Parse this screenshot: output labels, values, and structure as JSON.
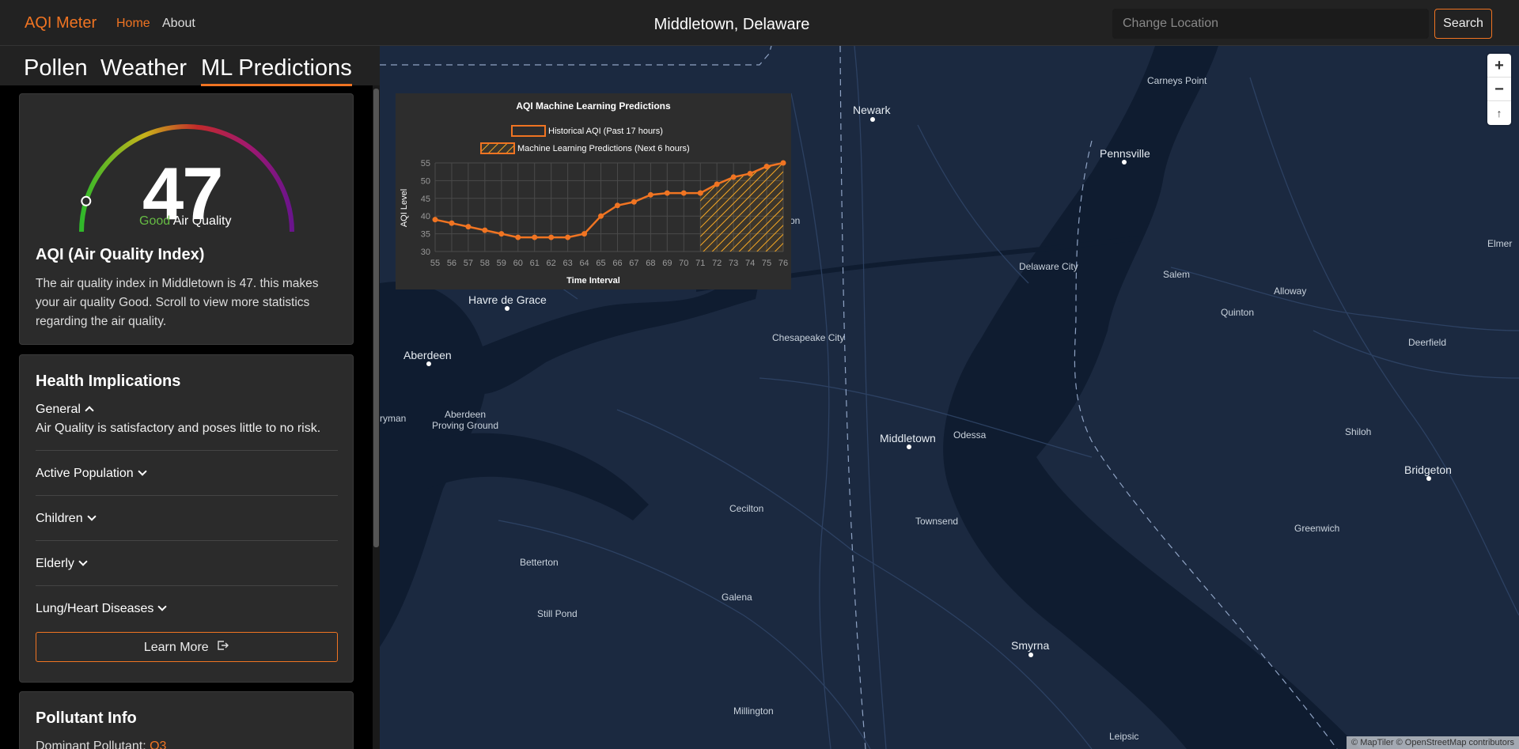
{
  "nav": {
    "brand": "AQI Meter",
    "home": "Home",
    "about": "About",
    "location": "Middletown, Delaware",
    "search_placeholder": "Change Location",
    "search_button": "Search"
  },
  "tabs": [
    {
      "label": "Pollen"
    },
    {
      "label": "Weather"
    },
    {
      "label": "ML Predictions",
      "active": true
    }
  ],
  "aqi": {
    "value": "47",
    "gauge_fraction": 0.094,
    "quality_word": "Good",
    "quality_suffix": "Air Quality",
    "title": "AQI (Air Quality Index)",
    "description": "The air quality index in Middletown is 47. this makes your air quality Good. Scroll to view more statistics regarding the air quality."
  },
  "health": {
    "title": "Health Implications",
    "general_label": "General",
    "general_text": "Air Quality is satisfactory and poses little to no risk.",
    "items": [
      "Active Population",
      "Children",
      "Elderly",
      "Lung/Heart Diseases"
    ],
    "learn_more": "Learn More"
  },
  "pollutant": {
    "title": "Pollutant Info",
    "dominant_label": "Dominant Pollutant:",
    "dominant_value": "O3"
  },
  "map": {
    "zoom_in": "+",
    "zoom_out": "−",
    "reset": "↑",
    "attribution": "© MapTiler © OpenStreetMap contributors",
    "places": [
      {
        "name": "Newark",
        "big": true
      },
      {
        "name": "Carneys Point"
      },
      {
        "name": "Pennsville",
        "big": true
      },
      {
        "name": "Elmer"
      },
      {
        "name": "Delaware City"
      },
      {
        "name": "Salem"
      },
      {
        "name": "Alloway"
      },
      {
        "name": "Quinton"
      },
      {
        "name": "Deerfield"
      },
      {
        "name": "Havre de Grace",
        "big": true
      },
      {
        "name": "Chesapeake City"
      },
      {
        "name": "Aberdeen",
        "big": true
      },
      {
        "name": "Aberdeen Proving Ground"
      },
      {
        "name": "ryman"
      },
      {
        "name": "Middletown",
        "big": true
      },
      {
        "name": "Odessa"
      },
      {
        "name": "Shiloh"
      },
      {
        "name": "Bridgeton",
        "big": true
      },
      {
        "name": "Cecilton"
      },
      {
        "name": "Townsend"
      },
      {
        "name": "Greenwich"
      },
      {
        "name": "Betterton"
      },
      {
        "name": "Galena"
      },
      {
        "name": "Still Pond"
      },
      {
        "name": "Smyrna",
        "big": true
      },
      {
        "name": "Millington"
      },
      {
        "name": "Leipsic"
      },
      {
        "name": "on"
      }
    ]
  },
  "chart_data": {
    "type": "line",
    "title": "AQI Machine Learning Predictions",
    "xlabel": "Time Interval",
    "ylabel": "AQI Level",
    "x": [
      55,
      56,
      57,
      58,
      59,
      60,
      61,
      62,
      63,
      64,
      65,
      66,
      67,
      68,
      69,
      70,
      71,
      72,
      73,
      74,
      75,
      76
    ],
    "ylim": [
      30,
      55
    ],
    "yticks": [
      30,
      35,
      40,
      45,
      50,
      55
    ],
    "grid": true,
    "legend_position": "top",
    "series": [
      {
        "name": "Historical AQI (Past 17 hours)",
        "x": [
          55,
          56,
          57,
          58,
          59,
          60,
          61,
          62,
          63,
          64,
          65,
          66,
          67,
          68,
          69,
          70,
          71
        ],
        "values": [
          39,
          38,
          37,
          36,
          35,
          34,
          34,
          34,
          34,
          35,
          40,
          43,
          44,
          46,
          46.5,
          46.5,
          46.5
        ],
        "color": "#f07422"
      },
      {
        "name": "Machine Learning Predictions (Next 6 hours)",
        "x": [
          71,
          72,
          73,
          74,
          75,
          76
        ],
        "values": [
          46.5,
          49,
          51,
          52,
          54,
          55
        ],
        "color": "#f7a823"
      }
    ]
  }
}
